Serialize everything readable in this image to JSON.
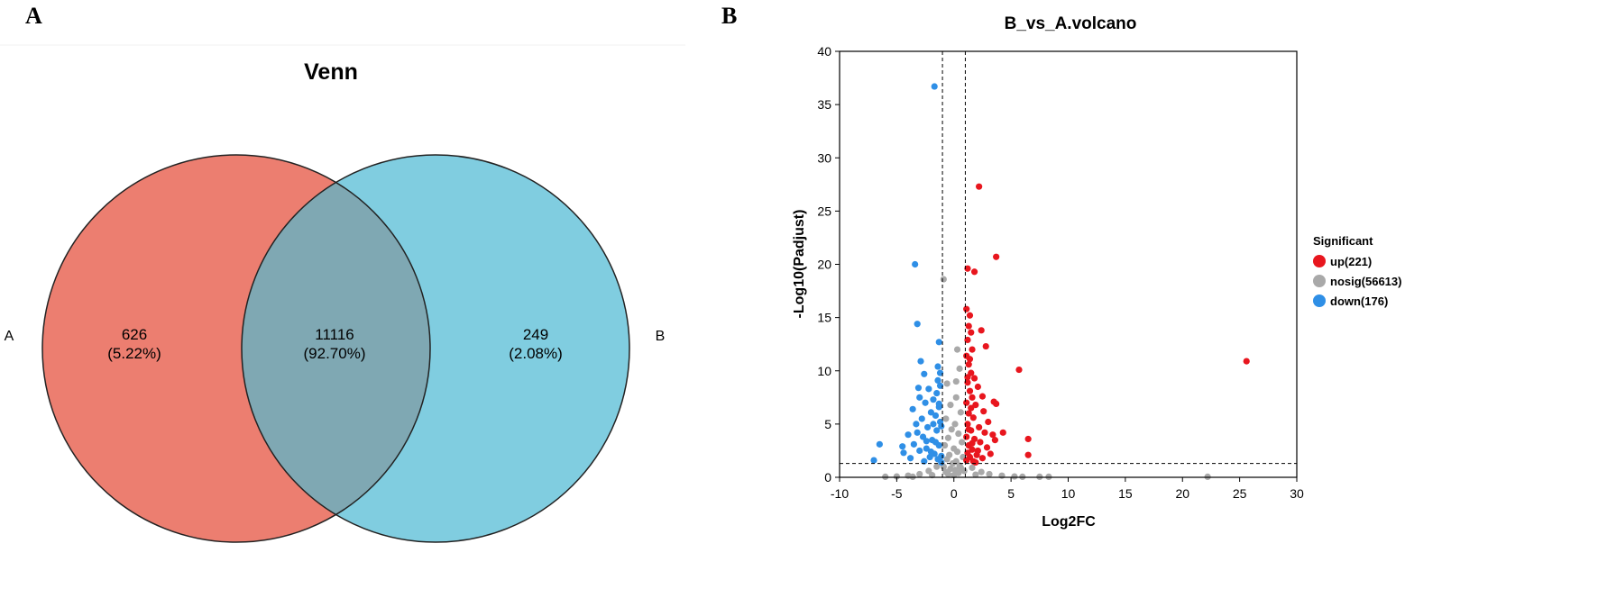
{
  "panels": {
    "a_letter": "A",
    "b_letter": "B"
  },
  "colors": {
    "set_a": "#ec7e70",
    "set_b": "#80cde0",
    "overlap": "#7fa8b3",
    "up": "#e8161e",
    "nosig": "#a9a9a9",
    "down": "#2f8fe6"
  },
  "chart_data": [
    {
      "type": "venn",
      "title": "Venn",
      "sets": [
        {
          "name": "A",
          "only_count": "626",
          "only_percent": "(5.22%)"
        },
        {
          "name": "B",
          "only_count": "249",
          "only_percent": "(2.08%)"
        }
      ],
      "intersection": {
        "count": "11116",
        "percent": "(92.70%)"
      }
    },
    {
      "type": "scatter",
      "title": "B_vs_A.volcano",
      "xlabel": "Log2FC",
      "ylabel": "-Log10(Padjust)",
      "xlim": [
        -10,
        30
      ],
      "ylim": [
        0,
        40
      ],
      "xticks": [
        -10,
        -5,
        0,
        5,
        10,
        15,
        20,
        25,
        30
      ],
      "yticks": [
        0,
        5,
        10,
        15,
        20,
        25,
        30,
        35,
        40
      ],
      "thresholds": {
        "log2fc": [
          -1,
          1
        ],
        "neg_log10_padjust": 1.3
      },
      "legend": {
        "title": "Significant",
        "entries": [
          {
            "key": "up",
            "label": "up(221)"
          },
          {
            "key": "nosig",
            "label": "nosig(56613)"
          },
          {
            "key": "down",
            "label": "down(176)"
          }
        ]
      },
      "series": [
        {
          "name": "up",
          "points": [
            [
              25.6,
              10.9
            ],
            [
              5.7,
              10.1
            ],
            [
              3.7,
              20.7
            ],
            [
              2.2,
              27.3
            ],
            [
              1.8,
              19.3
            ],
            [
              1.2,
              19.6
            ],
            [
              3.5,
              7.1
            ],
            [
              3.7,
              6.9
            ],
            [
              6.5,
              3.6
            ],
            [
              6.5,
              2.1
            ],
            [
              4.3,
              4.2
            ],
            [
              2.8,
              12.3
            ],
            [
              1.4,
              15.2
            ],
            [
              1.1,
              15.8
            ],
            [
              1.3,
              14.2
            ],
            [
              1.5,
              13.6
            ],
            [
              1.2,
              12.9
            ],
            [
              2.4,
              13.8
            ],
            [
              1.6,
              12.0
            ],
            [
              1.1,
              11.4
            ],
            [
              1.3,
              10.6
            ],
            [
              1.5,
              9.8
            ],
            [
              1.8,
              9.3
            ],
            [
              1.2,
              8.9
            ],
            [
              2.1,
              8.5
            ],
            [
              1.4,
              8.1
            ],
            [
              1.6,
              7.5
            ],
            [
              2.5,
              7.6
            ],
            [
              1.1,
              7.0
            ],
            [
              1.9,
              6.8
            ],
            [
              2.6,
              6.2
            ],
            [
              1.3,
              6.0
            ],
            [
              1.7,
              5.6
            ],
            [
              3.0,
              5.2
            ],
            [
              1.2,
              5.0
            ],
            [
              2.2,
              4.7
            ],
            [
              1.5,
              4.4
            ],
            [
              2.7,
              4.2
            ],
            [
              3.4,
              4.0
            ],
            [
              1.1,
              3.8
            ],
            [
              1.8,
              3.6
            ],
            [
              2.3,
              3.3
            ],
            [
              1.3,
              3.0
            ],
            [
              2.9,
              2.8
            ],
            [
              1.6,
              2.6
            ],
            [
              3.6,
              3.5
            ],
            [
              1.2,
              2.3
            ],
            [
              2.0,
              2.1
            ],
            [
              1.4,
              1.9
            ],
            [
              2.5,
              1.8
            ],
            [
              1.1,
              1.6
            ],
            [
              1.7,
              1.5
            ],
            [
              3.2,
              2.2
            ],
            [
              1.9,
              1.4
            ],
            [
              1.3,
              4.5
            ],
            [
              1.5,
              6.5
            ],
            [
              1.2,
              9.4
            ],
            [
              1.4,
              11.1
            ],
            [
              1.6,
              3.2
            ],
            [
              2.1,
              2.5
            ]
          ]
        },
        {
          "name": "nosig",
          "points": [
            [
              22.2,
              0.05
            ],
            [
              -0.9,
              18.6
            ],
            [
              0.3,
              12.0
            ],
            [
              0.5,
              10.2
            ],
            [
              -0.6,
              8.8
            ],
            [
              0.2,
              7.5
            ],
            [
              -0.3,
              6.8
            ],
            [
              0.6,
              6.1
            ],
            [
              -0.7,
              5.5
            ],
            [
              0.1,
              5.0
            ],
            [
              -0.2,
              4.5
            ],
            [
              0.4,
              4.1
            ],
            [
              -0.5,
              3.7
            ],
            [
              0.7,
              3.3
            ],
            [
              -0.8,
              3.0
            ],
            [
              0.0,
              2.7
            ],
            [
              0.3,
              2.4
            ],
            [
              -0.4,
              2.1
            ],
            [
              0.8,
              1.9
            ],
            [
              -0.6,
              1.7
            ],
            [
              0.2,
              1.5
            ],
            [
              -0.1,
              1.3
            ],
            [
              0.5,
              1.1
            ],
            [
              -0.9,
              1.0
            ],
            [
              0.6,
              0.9
            ],
            [
              -0.3,
              0.8
            ],
            [
              0.1,
              0.7
            ],
            [
              0.9,
              0.6
            ],
            [
              -0.7,
              0.5
            ],
            [
              0.4,
              0.4
            ],
            [
              -0.5,
              0.3
            ],
            [
              0.0,
              0.2
            ],
            [
              -1.5,
              1.0
            ],
            [
              1.6,
              0.9
            ],
            [
              -2.2,
              0.6
            ],
            [
              2.4,
              0.5
            ],
            [
              -3.0,
              0.3
            ],
            [
              3.1,
              0.3
            ],
            [
              -4.0,
              0.15
            ],
            [
              4.2,
              0.15
            ],
            [
              -5.0,
              0.08
            ],
            [
              5.3,
              0.08
            ],
            [
              6.0,
              0.05
            ],
            [
              -6.0,
              0.05
            ],
            [
              7.5,
              0.05
            ],
            [
              -3.6,
              0.05
            ],
            [
              8.3,
              0.05
            ],
            [
              -1.9,
              0.2
            ],
            [
              1.9,
              0.25
            ],
            [
              0.2,
              9.0
            ]
          ]
        },
        {
          "name": "down",
          "points": [
            [
              -1.7,
              36.7
            ],
            [
              -3.4,
              20.0
            ],
            [
              -3.2,
              14.4
            ],
            [
              -1.3,
              12.7
            ],
            [
              -2.9,
              10.9
            ],
            [
              -1.4,
              10.4
            ],
            [
              -2.6,
              9.7
            ],
            [
              -1.2,
              9.8
            ],
            [
              -3.1,
              8.4
            ],
            [
              -2.2,
              8.3
            ],
            [
              -1.5,
              7.9
            ],
            [
              -3.0,
              7.5
            ],
            [
              -1.8,
              7.3
            ],
            [
              -2.5,
              7.0
            ],
            [
              -1.3,
              6.6
            ],
            [
              -3.6,
              6.4
            ],
            [
              -2.0,
              6.1
            ],
            [
              -1.6,
              5.8
            ],
            [
              -2.8,
              5.5
            ],
            [
              -1.2,
              5.2
            ],
            [
              -3.3,
              5.0
            ],
            [
              -2.3,
              4.7
            ],
            [
              -1.5,
              4.4
            ],
            [
              -4.0,
              4.0
            ],
            [
              -2.7,
              3.8
            ],
            [
              -1.9,
              3.5
            ],
            [
              -3.5,
              3.1
            ],
            [
              -1.3,
              3.0
            ],
            [
              -2.4,
              2.7
            ],
            [
              -3.0,
              2.5
            ],
            [
              -1.7,
              2.2
            ],
            [
              -4.5,
              2.9
            ],
            [
              -2.1,
              1.9
            ],
            [
              -1.4,
              1.7
            ],
            [
              -3.8,
              1.8
            ],
            [
              -2.6,
              1.5
            ],
            [
              -1.1,
              1.4
            ],
            [
              -6.5,
              3.1
            ],
            [
              -7.0,
              1.6
            ],
            [
              -4.4,
              2.3
            ],
            [
              -1.2,
              8.6
            ],
            [
              -1.4,
              9.1
            ],
            [
              -1.1,
              4.8
            ],
            [
              -1.6,
              3.3
            ],
            [
              -2.0,
              2.4
            ],
            [
              -1.3,
              6.9
            ],
            [
              -1.8,
              5.0
            ],
            [
              -2.4,
              3.4
            ],
            [
              -1.1,
              2.0
            ],
            [
              -3.2,
              4.2
            ]
          ]
        }
      ]
    }
  ]
}
